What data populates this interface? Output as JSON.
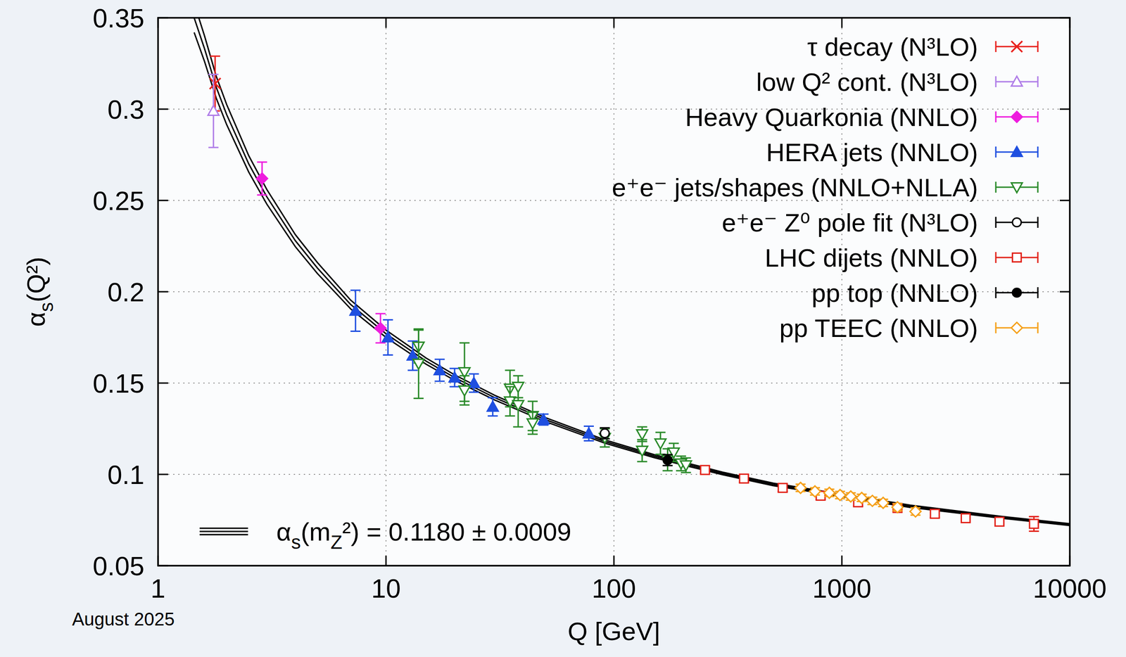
{
  "chart_data": {
    "type": "scatter",
    "x_label": "Q [GeV]",
    "y_label": "αs(Q²)",
    "date": "August 2025",
    "log": "x",
    "grid": true,
    "legend": "upper right",
    "xlim": [
      1,
      10000
    ],
    "xticks": [
      1,
      10,
      100,
      1000,
      10000
    ],
    "ylim": [
      0.05,
      0.35
    ],
    "yticks": [
      0.05,
      0.1,
      0.15,
      0.2,
      0.25,
      0.3,
      0.35
    ],
    "series": [
      {
        "name": "τ decay (N³LO)",
        "color": "#e8211d",
        "marker": "x",
        "x": [
          1.78
        ],
        "values": [
          0.314
        ],
        "errors": [
          0.015
        ]
      },
      {
        "name": "low Q² cont. (N³LO)",
        "color": "#b07ee8",
        "marker": "triangle-open",
        "x": [
          1.75
        ],
        "values": [
          0.299
        ],
        "errors": [
          0.02
        ]
      },
      {
        "name": "Heavy Quarkonia (NNLO)",
        "color": "#ee1cde",
        "marker": "diamond",
        "x": [
          2.86,
          9.46
        ],
        "values": [
          0.262,
          0.18
        ],
        "errors": [
          0.009,
          0.008
        ]
      },
      {
        "name": "HERA jets (NNLO)",
        "color": "#1f4fe0",
        "marker": "triangle",
        "x": [
          7.35,
          10.2,
          13.1,
          17.2,
          20.0,
          24.3,
          29.4,
          49.1,
          77.6
        ],
        "values": [
          0.1896,
          0.175,
          0.165,
          0.157,
          0.153,
          0.15,
          0.137,
          0.13,
          0.1224
        ],
        "errors": [
          0.0112,
          0.0096,
          0.008,
          0.006,
          0.005,
          0.005,
          0.005,
          0.003,
          0.004
        ]
      },
      {
        "name": "e⁺e⁻ jets/shapes (NNLO+NLLA)",
        "color": "#2a8a2a",
        "marker": "triangle-down-open",
        "x": [
          13.9,
          13.9,
          22.1,
          22.1,
          35,
          35,
          38,
          38,
          44,
          44,
          91.2,
          133,
          133,
          160,
          172,
          183,
          197,
          207
        ],
        "values": [
          0.17,
          0.1606,
          0.156,
          0.146,
          0.147,
          0.14,
          0.138,
          0.148,
          0.132,
          0.128,
          0.12,
          0.122,
          0.113,
          0.117,
          0.108,
          0.112,
          0.106,
          0.105
        ],
        "errors": [
          0.009,
          0.019,
          0.016,
          0.008,
          0.01,
          0.008,
          0.012,
          0.006,
          0.008,
          0.006,
          0.005,
          0.004,
          0.006,
          0.006,
          0.006,
          0.005,
          0.004,
          0.004
        ]
      },
      {
        "name": "e⁺e⁻ Z⁰ pole fit (N³LO)",
        "color": "#000000",
        "marker": "circle-open",
        "x": [
          91.19
        ],
        "values": [
          0.1225
        ],
        "errors": [
          0.003
        ]
      },
      {
        "name": "LHC dijets (NNLO)",
        "color": "#e2231a",
        "marker": "square-open",
        "x": [
          251,
          372,
          550,
          807,
          1178,
          1754,
          2558,
          3493,
          4913,
          6960
        ],
        "values": [
          0.1024,
          0.0977,
          0.0926,
          0.0883,
          0.0847,
          0.0816,
          0.0784,
          0.076,
          0.0741,
          0.0729
        ],
        "errors": [
          0.002,
          0.002,
          0.002,
          0.002,
          0.002,
          0.002,
          0.002,
          0.002,
          0.002,
          0.004
        ]
      },
      {
        "name": "pp top (NNLO)",
        "color": "#000000",
        "marker": "circle",
        "x": [
          172
        ],
        "values": [
          0.1078
        ],
        "errors": [
          0.003
        ]
      },
      {
        "name": "pp TEEC (NNLO)",
        "color": "#f5a01a",
        "marker": "diamond-open",
        "x": [
          659,
          762,
          881,
          982,
          1094,
          1222,
          1361,
          1517,
          1754,
          2104
        ],
        "values": [
          0.0926,
          0.0907,
          0.0899,
          0.0887,
          0.0879,
          0.0871,
          0.0855,
          0.0844,
          0.082,
          0.0797
        ],
        "errors": [
          0.002,
          0.002,
          0.002,
          0.002,
          0.002,
          0.002,
          0.002,
          0.002,
          0.002,
          0.002
        ]
      },
      {
        "name": "αs(mZ²) = 0.1180 ± 0.0009",
        "color": "#000000",
        "type": "line",
        "line_style": "solid",
        "x": [
          1.44,
          1.6,
          1.8,
          2,
          2.5,
          3,
          4,
          5,
          7,
          10,
          15,
          20,
          30,
          50,
          91.2,
          150,
          200,
          300,
          500,
          1000,
          2000,
          5000,
          10000
        ],
        "values": [
          0.35,
          0.333,
          0.312,
          0.297,
          0.27,
          0.252,
          0.228,
          0.213,
          0.193,
          0.177,
          0.162,
          0.153,
          0.142,
          0.13,
          0.118,
          0.11,
          0.106,
          0.1005,
          0.0945,
          0.0885,
          0.0825,
          0.0765,
          0.0725
        ],
        "errors": [
          0.008,
          0.007,
          0.006,
          0.0055,
          0.0045,
          0.004,
          0.0033,
          0.003,
          0.0024,
          0.002,
          0.0017,
          0.0015,
          0.0013,
          0.0011,
          0.0009,
          0.0008,
          0.0008,
          0.0007,
          0.0007,
          0.0006,
          0.0006,
          0.0005,
          0.0005
        ]
      }
    ]
  }
}
